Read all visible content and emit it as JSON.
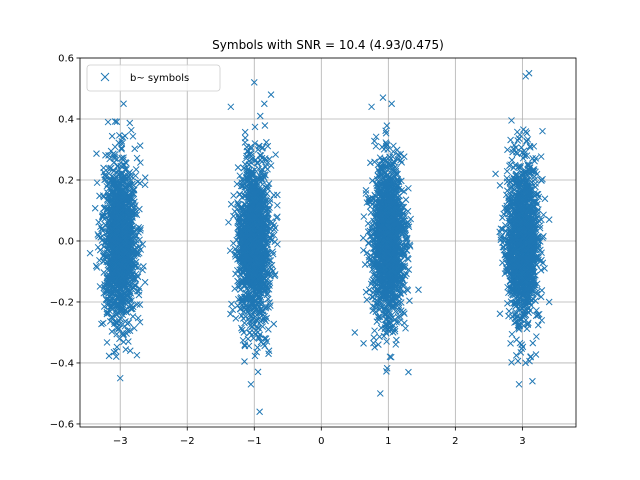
{
  "chart_data": {
    "type": "scatter",
    "title": "Symbols with SNR = 10.4 (4.93/0.475)",
    "xlabel": "",
    "ylabel": "",
    "xlim": [
      -3.6,
      3.8
    ],
    "ylim": [
      -0.61,
      0.6
    ],
    "xticks": [
      -3,
      -2,
      -1,
      0,
      1,
      2,
      3
    ],
    "xtick_labels": [
      "−3",
      "−2",
      "−1",
      "0",
      "1",
      "2",
      "3"
    ],
    "yticks": [
      -0.6,
      -0.4,
      -0.2,
      0.0,
      0.2,
      0.4,
      0.6
    ],
    "ytick_labels": [
      "−0.6",
      "−0.4",
      "−0.2",
      "0.0",
      "0.2",
      "0.4",
      "0.6"
    ],
    "grid": true,
    "legend": {
      "position": "top-left",
      "entries": [
        "b~ symbols"
      ]
    },
    "marker": "x",
    "color": "#1f77b4",
    "series": [
      {
        "name": "b~ symbols",
        "clusters": [
          {
            "center_x": -3,
            "spread_x": 0.12,
            "spread_y": 0.13,
            "count": 1500
          },
          {
            "center_x": -1,
            "spread_x": 0.12,
            "spread_y": 0.13,
            "count": 1500
          },
          {
            "center_x": 1,
            "spread_x": 0.12,
            "spread_y": 0.13,
            "count": 1500
          },
          {
            "center_x": 3,
            "spread_x": 0.12,
            "spread_y": 0.13,
            "count": 1500
          }
        ],
        "points": [
          [
            -3.0,
            -0.45
          ],
          [
            -2.95,
            0.45
          ],
          [
            -3.45,
            -0.04
          ],
          [
            -2.85,
            -0.36
          ],
          [
            -1.0,
            0.52
          ],
          [
            -0.92,
            -0.56
          ],
          [
            -1.05,
            -0.47
          ],
          [
            -0.75,
            0.48
          ],
          [
            -1.35,
            0.44
          ],
          [
            -0.78,
            -0.36
          ],
          [
            -0.85,
            0.45
          ],
          [
            0.92,
            0.47
          ],
          [
            0.88,
            -0.5
          ],
          [
            1.45,
            -0.16
          ],
          [
            0.5,
            -0.3
          ],
          [
            0.75,
            0.44
          ],
          [
            1.3,
            -0.43
          ],
          [
            1.05,
            0.45
          ],
          [
            3.1,
            0.55
          ],
          [
            2.95,
            -0.47
          ],
          [
            3.15,
            -0.46
          ],
          [
            2.6,
            0.22
          ],
          [
            3.4,
            0.07
          ],
          [
            3.05,
            0.54
          ],
          [
            3.4,
            -0.2
          ],
          [
            3.3,
            0.36
          ]
        ]
      }
    ]
  }
}
